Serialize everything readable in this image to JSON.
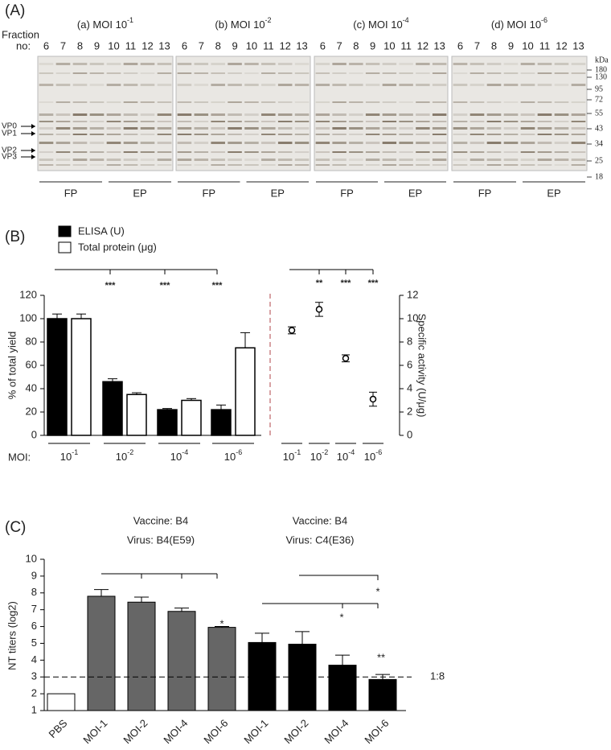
{
  "panel_a": {
    "label": "(A)",
    "fraction_label": [
      "Fraction",
      "no:"
    ],
    "gels": [
      {
        "title": {
          "prefix": "(a) MOI 10",
          "exponent": "-1"
        },
        "lanes": [
          6,
          7,
          8,
          9,
          10,
          11,
          12,
          13
        ],
        "groups": [
          "FP",
          "EP"
        ]
      },
      {
        "title": {
          "prefix": "(b) MOI 10",
          "exponent": "-2"
        },
        "lanes": [
          6,
          7,
          8,
          9,
          10,
          11,
          12,
          13
        ],
        "groups": [
          "FP",
          "EP"
        ]
      },
      {
        "title": {
          "prefix": "(c) MOI 10",
          "exponent": "-4"
        },
        "lanes": [
          6,
          7,
          8,
          9,
          10,
          11,
          12,
          13
        ],
        "groups": [
          "FP",
          "EP"
        ]
      },
      {
        "title": {
          "prefix": "(d) MOI 10",
          "exponent": "-6"
        },
        "lanes": [
          6,
          7,
          8,
          9,
          10,
          11,
          12,
          13
        ],
        "groups": [
          "FP",
          "EP"
        ]
      }
    ],
    "kda": {
      "unit": "kDa",
      "markers": [
        180,
        130,
        95,
        72,
        55,
        43,
        34,
        25,
        18
      ]
    },
    "proteins": [
      "VP0",
      "VP1",
      "VP2",
      "VP3"
    ]
  },
  "panel_b_label": "(B)",
  "panel_c_label": "(C)",
  "chart_data": [
    {
      "type": "bar",
      "ylabel": "% of total yield",
      "xlabel": "MOI:",
      "categories": [
        {
          "base": "10",
          "exponent": "-1"
        },
        {
          "base": "10",
          "exponent": "-2"
        },
        {
          "base": "10",
          "exponent": "-4"
        },
        {
          "base": "10",
          "exponent": "-6"
        }
      ],
      "series": [
        {
          "name": "ELISA (U)",
          "color": "#000000",
          "values": [
            100,
            46,
            22,
            22
          ],
          "errors": [
            4,
            2.5,
            1,
            4
          ]
        },
        {
          "name": "Total protein (μg)",
          "color": "#ffffff",
          "values": [
            100,
            35,
            30,
            75
          ],
          "errors": [
            4,
            1.5,
            1.5,
            13
          ]
        }
      ],
      "ylim": [
        0,
        120
      ],
      "yticks": [
        0,
        20,
        40,
        60,
        80,
        100,
        120
      ],
      "significance": [
        "***",
        "***",
        "***"
      ]
    },
    {
      "type": "scatter",
      "y2label": "Specific activity (U/μg)",
      "categories": [
        {
          "base": "10",
          "exponent": "-1"
        },
        {
          "base": "10",
          "exponent": "-2"
        },
        {
          "base": "10",
          "exponent": "-4"
        },
        {
          "base": "10",
          "exponent": "-6"
        }
      ],
      "values": [
        9,
        10.8,
        6.6,
        3.1
      ],
      "errors": [
        0.3,
        0.6,
        0.3,
        0.6
      ],
      "y2lim": [
        0,
        12
      ],
      "y2ticks": [
        0,
        2,
        4,
        6,
        8,
        10,
        12
      ],
      "significance": [
        "**",
        "***",
        "***"
      ]
    },
    {
      "type": "bar",
      "ylabel": "NT titers (log2)",
      "annotations": [
        [
          "Vaccine: B4",
          "Virus: B4(E59)"
        ],
        [
          "Vaccine: B4",
          "Virus: C4(E36)"
        ]
      ],
      "categories": [
        "PBS",
        "MOI-1",
        "MOI-2",
        "MOI-4",
        "MOI-6",
        "MOI-1",
        "MOI-2",
        "MOI-4",
        "MOI-6"
      ],
      "values": [
        2,
        7.8,
        7.45,
        6.9,
        5.95,
        5.05,
        4.95,
        3.7,
        2.85
      ],
      "errors": [
        0,
        0.4,
        0.3,
        0.2,
        0.05,
        0.55,
        0.75,
        0.6,
        0.3
      ],
      "colors": [
        "#ffffff",
        "#666666",
        "#666666",
        "#666666",
        "#666666",
        "#000000",
        "#000000",
        "#000000",
        "#000000"
      ],
      "ylim": [
        1,
        10
      ],
      "yticks": [
        1,
        2,
        3,
        4,
        5,
        6,
        7,
        8,
        9,
        10
      ],
      "reference_line": {
        "value": 3,
        "label": "1:8"
      },
      "significance": [
        "*",
        "*",
        "*",
        "**"
      ]
    }
  ]
}
